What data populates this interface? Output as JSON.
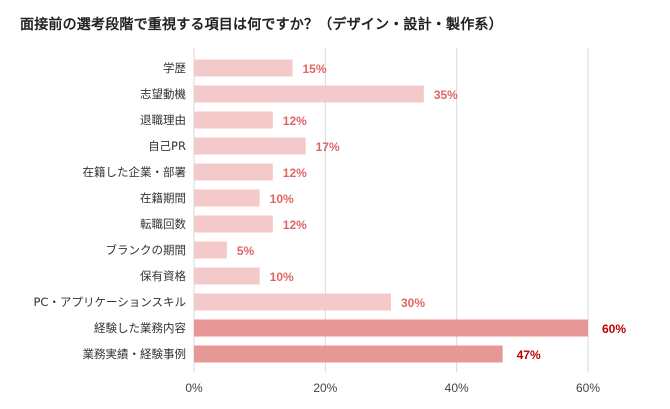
{
  "title": "面接前の選考段階で重視する項目は何ですか？（デザイン・設計・製作系）",
  "chart_data": {
    "type": "bar",
    "orientation": "horizontal",
    "title": "面接前の選考段階で重視する項目は何ですか？（デザイン・設計・製作系）",
    "categories": [
      "学歴",
      "志望動機",
      "退職理由",
      "自己PR",
      "在籍した企業・部署",
      "在籍期間",
      "転職回数",
      "ブランクの期間",
      "保有資格",
      "PC・アプリケーションスキル",
      "経験した業務内容",
      "業務実績・経験事例"
    ],
    "values": [
      15,
      35,
      12,
      17,
      12,
      10,
      12,
      5,
      10,
      30,
      60,
      47
    ],
    "value_labels": [
      "15%",
      "35%",
      "12%",
      "17%",
      "12%",
      "10%",
      "12%",
      "5%",
      "10%",
      "30%",
      "60%",
      "47%"
    ],
    "highlighted": [
      false,
      false,
      false,
      false,
      false,
      false,
      false,
      false,
      false,
      false,
      true,
      true
    ],
    "xlim": [
      0,
      60
    ],
    "x_ticks": [
      0,
      20,
      40,
      60
    ],
    "x_tick_labels": [
      "0%",
      "20%",
      "40%",
      "60%"
    ],
    "grid": true,
    "legend": "none",
    "colors": {
      "bar": "#f4c9c9",
      "bar_highlight": "#e89797",
      "label": "#e06666",
      "label_highlight": "#c00000",
      "grid": "#d9d9d9"
    }
  }
}
